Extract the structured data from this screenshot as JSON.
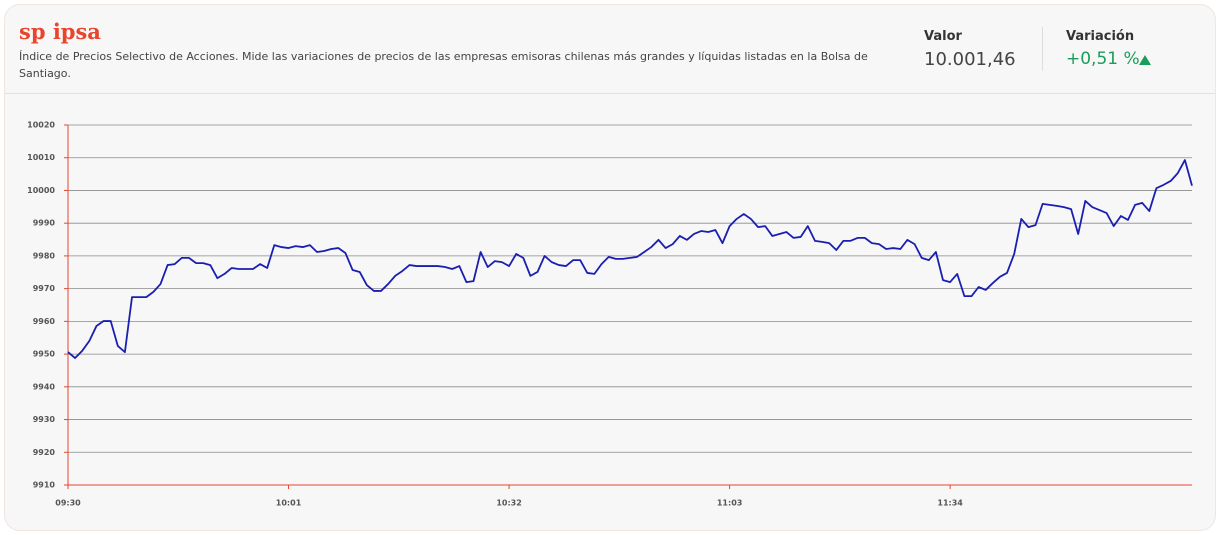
{
  "header": {
    "title": "sp ipsa",
    "description": "Índice de Precios Selectivo de Acciones. Mide las variaciones de precios de las empresas emisoras chilenas más grandes y líquidas listadas en la Bolsa de Santiago.",
    "value_label": "Valor",
    "value": "10.001,46",
    "change_label": "Variación",
    "change": "+0,51 %"
  },
  "chart_data": {
    "type": "line",
    "color": "#1a1fb0",
    "axis_color": "#e8452c",
    "grid": true,
    "ylim": [
      9910,
      10020
    ],
    "yticks": [
      9910,
      9920,
      9930,
      9940,
      9950,
      9960,
      9970,
      9980,
      9990,
      10000,
      10010,
      10020
    ],
    "categories": [
      "09:30",
      null,
      null,
      null,
      null,
      null,
      null,
      null,
      null,
      null,
      null,
      null,
      null,
      null,
      null,
      null,
      null,
      null,
      null,
      null,
      null,
      null,
      null,
      null,
      null,
      null,
      null,
      null,
      null,
      null,
      null,
      "10:01",
      null,
      null,
      null,
      null,
      null,
      null,
      null,
      null,
      null,
      null,
      null,
      null,
      null,
      null,
      null,
      null,
      null,
      null,
      null,
      null,
      null,
      null,
      null,
      null,
      null,
      null,
      null,
      null,
      null,
      null,
      "10:32",
      null,
      null,
      null,
      null,
      null,
      null,
      null,
      null,
      null,
      null,
      null,
      null,
      null,
      null,
      null,
      null,
      null,
      null,
      null,
      null,
      null,
      null,
      null,
      null,
      null,
      null,
      null,
      null,
      null,
      null,
      "11:03",
      null,
      null,
      null,
      null,
      null,
      null,
      null,
      null,
      null,
      null,
      null,
      null,
      null,
      null,
      null,
      null,
      null,
      null,
      null,
      null,
      null,
      null,
      null,
      null,
      null,
      null,
      null,
      null,
      null,
      null,
      "11:34",
      null,
      null,
      null,
      null,
      null,
      null,
      null,
      null,
      null,
      null,
      null,
      null,
      null,
      null,
      null,
      null,
      null,
      null,
      null,
      null,
      null,
      null,
      null,
      null,
      null,
      null,
      null,
      null,
      null,
      null,
      null,
      null,
      null,
      null
    ],
    "values": [
      9950.6,
      9948.8,
      9951.0,
      9954.0,
      9958.6,
      9960.1,
      9960.1,
      9952.5,
      9950.6,
      9967.4,
      9967.4,
      9967.4,
      9969.0,
      9971.4,
      9977.2,
      9977.5,
      9979.4,
      9979.4,
      9977.8,
      9977.8,
      9977.2,
      9973.2,
      9974.5,
      9976.3,
      9976.0,
      9976.0,
      9976.0,
      9977.5,
      9976.3,
      9983.3,
      9982.7,
      9982.4,
      9983.0,
      9982.7,
      9983.3,
      9981.2,
      9981.5,
      9982.1,
      9982.4,
      9980.9,
      9975.7,
      9975.1,
      9971.1,
      9969.3,
      9969.3,
      9971.4,
      9973.9,
      9975.4,
      9977.2,
      9976.9,
      9976.9,
      9976.9,
      9976.9,
      9976.6,
      9976.0,
      9976.9,
      9972.0,
      9972.3,
      9981.2,
      9976.6,
      9978.4,
      9978.1,
      9976.9,
      9980.6,
      9979.4,
      9973.9,
      9975.1,
      9980.0,
      9978.1,
      9977.2,
      9976.9,
      9978.7,
      9978.7,
      9974.8,
      9974.5,
      9977.5,
      9979.7,
      9979.1,
      9979.1,
      9979.4,
      9979.7,
      9981.2,
      9982.7,
      9984.9,
      9982.4,
      9983.6,
      9986.1,
      9984.9,
      9986.7,
      9987.6,
      9987.3,
      9987.9,
      9983.9,
      9989.1,
      9991.3,
      9992.8,
      9991.3,
      9988.8,
      9989.1,
      9986.1,
      9986.7,
      9987.3,
      9985.5,
      9985.8,
      9989.1,
      9984.6,
      9984.3,
      9983.9,
      9981.8,
      9984.6,
      9984.6,
      9985.5,
      9985.5,
      9983.9,
      9983.6,
      9982.1,
      9982.4,
      9982.1,
      9984.9,
      9983.6,
      9979.4,
      9978.7,
      9981.2,
      9972.6,
      9972.0,
      9974.5,
      9967.7,
      9967.7,
      9970.5,
      9969.6,
      9971.7,
      9973.6,
      9974.8,
      9980.6,
      9991.3,
      9988.8,
      9989.4,
      9995.9,
      9995.6,
      9995.3,
      9994.9,
      9994.3,
      9986.7,
      9996.8,
      9994.9,
      9994.0,
      9993.1,
      9989.1,
      9992.2,
      9991.0,
      9995.6,
      9996.2,
      9993.7,
      10000.7,
      10001.7,
      10002.9,
      10005.3,
      10009.3,
      10001.46
    ]
  }
}
